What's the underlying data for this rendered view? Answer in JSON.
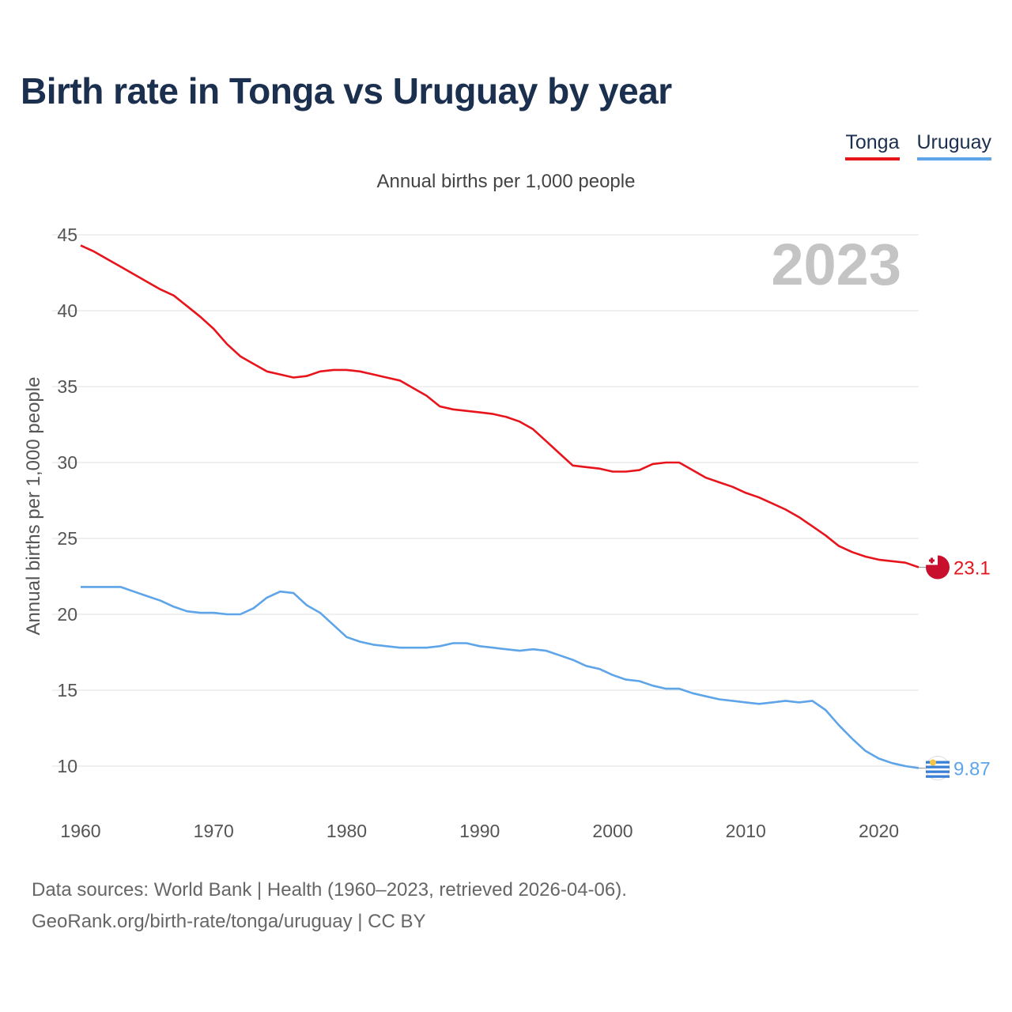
{
  "title": "Birth rate in Tonga vs Uruguay by year",
  "legend": [
    {
      "label": "Tonga",
      "color": "#e8141c"
    },
    {
      "label": "Uruguay",
      "color": "#5ea4e8"
    }
  ],
  "subtitle": "Annual births per 1,000 people",
  "year_watermark": "2023",
  "footer": {
    "line1": "Data sources: World Bank | Health (1960–2023, retrieved 2026-04-06).",
    "line2": "GeoRank.org/birth-rate/tonga/uruguay | CC BY"
  },
  "chart_data": {
    "type": "line",
    "title": "Birth rate in Tonga vs Uruguay by year",
    "xlabel": "",
    "ylabel": "Annual births per 1,000 people",
    "xlim": [
      1960,
      2023
    ],
    "ylim": [
      8,
      46
    ],
    "yticks": [
      10,
      15,
      20,
      25,
      30,
      35,
      40,
      45
    ],
    "xticks": [
      1960,
      1970,
      1980,
      1990,
      2000,
      2010,
      2020
    ],
    "grid": true,
    "x": [
      1960,
      1961,
      1962,
      1963,
      1964,
      1965,
      1966,
      1967,
      1968,
      1969,
      1970,
      1971,
      1972,
      1973,
      1974,
      1975,
      1976,
      1977,
      1978,
      1979,
      1980,
      1981,
      1982,
      1983,
      1984,
      1985,
      1986,
      1987,
      1988,
      1989,
      1990,
      1991,
      1992,
      1993,
      1994,
      1995,
      1996,
      1997,
      1998,
      1999,
      2000,
      2001,
      2002,
      2003,
      2004,
      2005,
      2006,
      2007,
      2008,
      2009,
      2010,
      2011,
      2012,
      2013,
      2014,
      2015,
      2016,
      2017,
      2018,
      2019,
      2020,
      2021,
      2022,
      2023
    ],
    "series": [
      {
        "name": "Tonga",
        "color": "#e8141c",
        "end_label": "23.1",
        "values": [
          44.3,
          43.9,
          43.4,
          42.9,
          42.4,
          41.9,
          41.4,
          41.0,
          40.3,
          39.6,
          38.8,
          37.8,
          37.0,
          36.5,
          36.0,
          35.8,
          35.6,
          35.7,
          36.0,
          36.1,
          36.1,
          36.0,
          35.8,
          35.6,
          35.4,
          34.9,
          34.4,
          33.7,
          33.5,
          33.4,
          33.3,
          33.2,
          33.0,
          32.7,
          32.2,
          31.4,
          30.6,
          29.8,
          29.7,
          29.6,
          29.4,
          29.4,
          29.5,
          29.9,
          30.0,
          30.0,
          29.5,
          29.0,
          28.7,
          28.4,
          28.0,
          27.7,
          27.3,
          26.9,
          26.4,
          25.8,
          25.2,
          24.5,
          24.1,
          23.8,
          23.6,
          23.5,
          23.4,
          23.1
        ]
      },
      {
        "name": "Uruguay",
        "color": "#5ea4e8",
        "end_label": "9.87",
        "values": [
          21.8,
          21.8,
          21.8,
          21.8,
          21.5,
          21.2,
          20.9,
          20.5,
          20.2,
          20.1,
          20.1,
          20.0,
          20.0,
          20.4,
          21.1,
          21.5,
          21.4,
          20.6,
          20.1,
          19.3,
          18.5,
          18.2,
          18.0,
          17.9,
          17.8,
          17.8,
          17.8,
          17.9,
          18.1,
          18.1,
          17.9,
          17.8,
          17.7,
          17.6,
          17.7,
          17.6,
          17.3,
          17.0,
          16.6,
          16.4,
          16.0,
          15.7,
          15.6,
          15.3,
          15.1,
          15.1,
          14.8,
          14.6,
          14.4,
          14.3,
          14.2,
          14.1,
          14.2,
          14.3,
          14.2,
          14.3,
          13.7,
          12.7,
          11.8,
          11.0,
          10.5,
          10.2,
          10.0,
          9.87
        ]
      }
    ]
  }
}
